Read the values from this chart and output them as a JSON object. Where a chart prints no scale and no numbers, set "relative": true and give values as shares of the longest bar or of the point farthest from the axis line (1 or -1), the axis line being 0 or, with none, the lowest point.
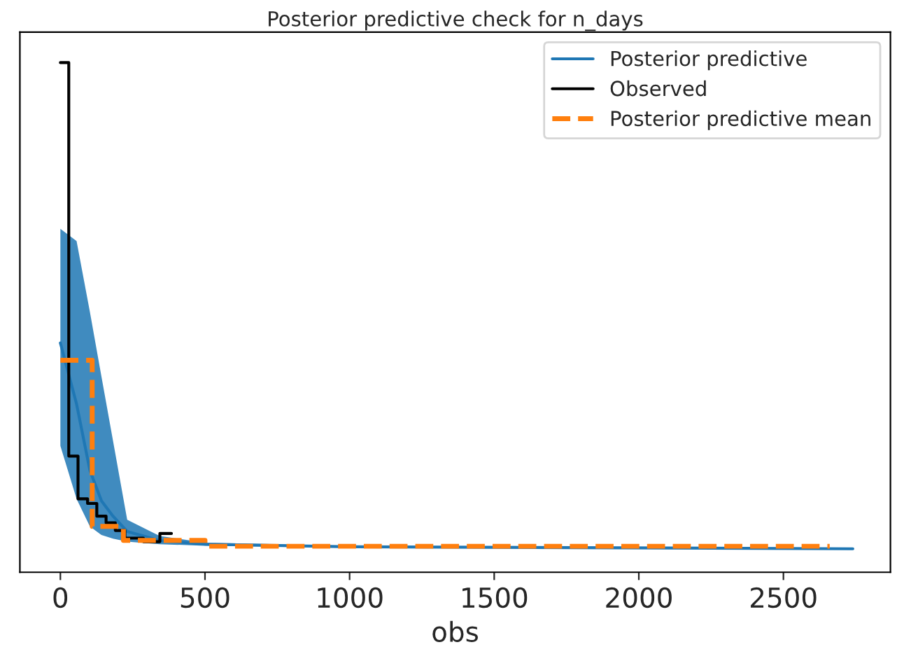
{
  "chart_data": {
    "type": "step",
    "title": "Posterior predictive check for n_days",
    "xlabel": "obs",
    "relative": true,
    "tick_labels": "x",
    "xlim": [
      -140,
      2870
    ],
    "xticks": [
      0,
      500,
      1000,
      1500,
      2000,
      2500
    ],
    "grid": false,
    "legend": "top right",
    "series": [
      {
        "name": "Posterior predictive",
        "type": "line",
        "color": "#1f77b4",
        "line_style": "solid",
        "x": [
          0,
          56,
          102,
          142,
          182,
          231,
          344,
          503,
          1000,
          2740
        ],
        "values": [
          0.45,
          0.33,
          0.2,
          0.14,
          0.11,
          0.08,
          0.062,
          0.055,
          0.05,
          0.046
        ],
        "lower": [
          0.248,
          0.144,
          0.09,
          0.073,
          0.066,
          0.06,
          0.055,
          0.052,
          0.048,
          0.045
        ],
        "upper": [
          0.674,
          0.65,
          0.511,
          0.384,
          0.258,
          0.103,
          0.071,
          0.058,
          0.052,
          0.047
        ]
      },
      {
        "name": "Observed",
        "color": "#000000",
        "line_style": "solid",
        "x": [
          0,
          29,
          61,
          94,
          126,
          158,
          190,
          223,
          287,
          344,
          384
        ],
        "values": [
          1,
          0.228,
          0.144,
          0.135,
          0.11,
          0.097,
          0.082,
          0.067,
          0.06,
          0.076,
          0.076
        ]
      },
      {
        "name": "Posterior predictive mean",
        "type": "step",
        "color": "#ff7f0e",
        "line_style": "dashed",
        "x": [
          0,
          110,
          218,
          500,
          2660
        ],
        "values": [
          0.416,
          0.09,
          0.0625,
          0.051,
          0.051
        ]
      }
    ]
  }
}
